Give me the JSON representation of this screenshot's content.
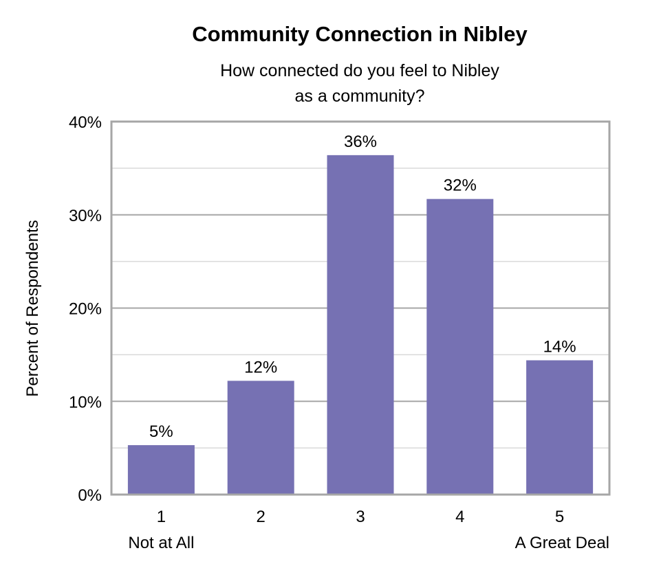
{
  "chart_data": {
    "type": "bar",
    "title": "Community Connection in Nibley",
    "subtitle_lines": [
      "How connected do you feel to Nibley",
      "as a community?"
    ],
    "xlabel": "",
    "ylabel": "Percent of Respondents",
    "categories": [
      "1",
      "2",
      "3",
      "4",
      "5"
    ],
    "category_sublabels": [
      "Not at All",
      "",
      "",
      "",
      "A Great Deal"
    ],
    "values": [
      5.3,
      12.2,
      36.4,
      31.7,
      14.4
    ],
    "data_labels": [
      "5%",
      "12%",
      "36%",
      "32%",
      "14%"
    ],
    "ylim": [
      0,
      40
    ],
    "yticks": [
      0,
      10,
      20,
      30,
      40
    ],
    "ytick_labels": [
      "0%",
      "10%",
      "20%",
      "30%",
      "40%"
    ],
    "grid": true,
    "minor_grid_step": 5,
    "colors": {
      "bar": "#7671b3",
      "frame": "#a6a6a6",
      "major_grid": "#a6a6a6",
      "minor_grid": "#d9d9d9"
    }
  }
}
